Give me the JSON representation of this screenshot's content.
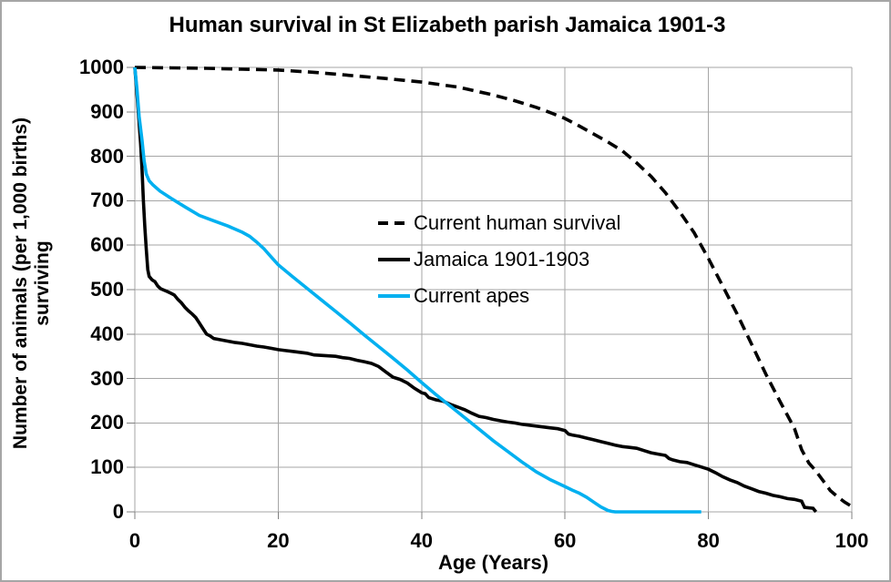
{
  "chart_data": {
    "type": "line",
    "title": "Human survival in St Elizabeth parish Jamaica 1901-3",
    "xlabel": "Age (Years)",
    "ylabel_line1": "Number of animals (per 1,000 births)",
    "ylabel_line2": "surviving",
    "xlim": [
      0,
      100
    ],
    "ylim": [
      0,
      1000
    ],
    "x_ticks": [
      0,
      20,
      40,
      60,
      80,
      100
    ],
    "y_ticks": [
      0,
      100,
      200,
      300,
      400,
      500,
      600,
      700,
      800,
      900,
      1000
    ],
    "grid": true,
    "legend_position": "center-of-plot",
    "colors": {
      "grid": "#a6a6a6",
      "tick": "#808080",
      "border": "#a6a6a6",
      "human_dashed": "#000000",
      "jamaica": "#000000",
      "apes": "#00b0f0"
    },
    "series": [
      {
        "name": "Current human survival",
        "style": "dashed",
        "color": "#000000",
        "points": [
          [
            0,
            1000
          ],
          [
            5,
            999
          ],
          [
            10,
            998
          ],
          [
            15,
            996
          ],
          [
            20,
            994
          ],
          [
            25,
            989
          ],
          [
            30,
            982
          ],
          [
            35,
            975
          ],
          [
            40,
            967
          ],
          [
            45,
            956
          ],
          [
            50,
            938
          ],
          [
            53,
            925
          ],
          [
            56,
            910
          ],
          [
            58,
            898
          ],
          [
            60,
            885
          ],
          [
            62,
            868
          ],
          [
            64,
            850
          ],
          [
            66,
            832
          ],
          [
            68,
            812
          ],
          [
            70,
            785
          ],
          [
            72,
            755
          ],
          [
            74,
            718
          ],
          [
            76,
            675
          ],
          [
            78,
            628
          ],
          [
            80,
            570
          ],
          [
            82,
            508
          ],
          [
            84,
            445
          ],
          [
            86,
            378
          ],
          [
            88,
            310
          ],
          [
            90,
            248
          ],
          [
            92,
            188
          ],
          [
            93,
            140
          ],
          [
            94,
            110
          ],
          [
            95,
            92
          ],
          [
            96,
            70
          ],
          [
            97,
            48
          ],
          [
            98,
            34
          ],
          [
            99,
            22
          ],
          [
            100,
            12
          ]
        ]
      },
      {
        "name": "Jamaica 1901-1903",
        "style": "solid",
        "color": "#000000",
        "points": [
          [
            0,
            1000
          ],
          [
            0.4,
            920
          ],
          [
            0.8,
            830
          ],
          [
            1,
            770
          ],
          [
            1.2,
            700
          ],
          [
            1.4,
            640
          ],
          [
            1.6,
            590
          ],
          [
            1.8,
            545
          ],
          [
            2,
            530
          ],
          [
            2.4,
            522
          ],
          [
            2.8,
            518
          ],
          [
            3.2,
            508
          ],
          [
            3.6,
            502
          ],
          [
            4.5,
            496
          ],
          [
            5,
            492
          ],
          [
            5.5,
            488
          ],
          [
            6,
            478
          ],
          [
            6.5,
            470
          ],
          [
            7,
            460
          ],
          [
            7.5,
            452
          ],
          [
            8,
            445
          ],
          [
            8.5,
            437
          ],
          [
            9,
            425
          ],
          [
            9.5,
            412
          ],
          [
            10,
            400
          ],
          [
            10.5,
            396
          ],
          [
            11,
            390
          ],
          [
            12,
            387
          ],
          [
            13,
            384
          ],
          [
            14,
            381
          ],
          [
            15,
            379
          ],
          [
            16,
            376
          ],
          [
            17,
            373
          ],
          [
            18,
            371
          ],
          [
            19,
            368
          ],
          [
            20,
            365
          ],
          [
            21,
            363
          ],
          [
            22,
            361
          ],
          [
            23,
            359
          ],
          [
            24,
            357
          ],
          [
            25,
            353
          ],
          [
            26,
            352
          ],
          [
            27,
            351
          ],
          [
            28,
            350
          ],
          [
            29,
            347
          ],
          [
            30,
            345
          ],
          [
            31,
            341
          ],
          [
            32,
            338
          ],
          [
            33,
            334
          ],
          [
            34,
            327
          ],
          [
            35,
            315
          ],
          [
            36,
            303
          ],
          [
            37,
            298
          ],
          [
            38,
            290
          ],
          [
            39,
            278
          ],
          [
            40,
            268
          ],
          [
            40.5,
            266
          ],
          [
            41,
            257
          ],
          [
            42,
            252
          ],
          [
            43,
            249
          ],
          [
            44,
            242
          ],
          [
            45,
            236
          ],
          [
            46,
            230
          ],
          [
            47,
            222
          ],
          [
            48,
            215
          ],
          [
            49,
            212
          ],
          [
            50,
            208
          ],
          [
            51,
            205
          ],
          [
            52,
            202
          ],
          [
            53,
            200
          ],
          [
            54,
            197
          ],
          [
            55,
            195
          ],
          [
            56,
            193
          ],
          [
            57,
            191
          ],
          [
            58,
            189
          ],
          [
            59,
            187
          ],
          [
            60,
            183
          ],
          [
            60.5,
            175
          ],
          [
            61,
            173
          ],
          [
            62,
            170
          ],
          [
            63,
            166
          ],
          [
            64,
            162
          ],
          [
            65,
            158
          ],
          [
            66,
            154
          ],
          [
            67,
            150
          ],
          [
            68,
            147
          ],
          [
            69,
            145
          ],
          [
            70,
            143
          ],
          [
            71,
            138
          ],
          [
            72,
            133
          ],
          [
            73,
            130
          ],
          [
            74,
            127
          ],
          [
            74.5,
            120
          ],
          [
            75,
            117
          ],
          [
            76,
            113
          ],
          [
            77,
            111
          ],
          [
            78,
            106
          ],
          [
            79,
            101
          ],
          [
            80,
            96
          ],
          [
            81,
            88
          ],
          [
            82,
            79
          ],
          [
            83,
            72
          ],
          [
            84,
            66
          ],
          [
            85,
            58
          ],
          [
            86,
            52
          ],
          [
            87,
            46
          ],
          [
            88,
            42
          ],
          [
            89,
            37
          ],
          [
            90,
            34
          ],
          [
            91,
            30
          ],
          [
            92,
            28
          ],
          [
            93,
            24
          ],
          [
            93.4,
            10
          ],
          [
            94.6,
            8
          ],
          [
            95,
            0
          ]
        ]
      },
      {
        "name": "Current apes",
        "style": "solid",
        "color": "#00b0f0",
        "points": [
          [
            0,
            1000
          ],
          [
            0.3,
            950
          ],
          [
            0.6,
            890
          ],
          [
            1,
            836
          ],
          [
            1.3,
            790
          ],
          [
            1.6,
            760
          ],
          [
            2,
            745
          ],
          [
            2.5,
            736
          ],
          [
            3.5,
            722
          ],
          [
            5,
            706
          ],
          [
            7,
            686
          ],
          [
            9,
            667
          ],
          [
            11,
            655
          ],
          [
            13,
            643
          ],
          [
            15,
            629
          ],
          [
            16,
            620
          ],
          [
            17,
            607
          ],
          [
            18,
            592
          ],
          [
            19,
            574
          ],
          [
            20,
            556
          ],
          [
            22,
            529
          ],
          [
            24,
            503
          ],
          [
            26,
            477
          ],
          [
            28,
            451
          ],
          [
            30,
            425
          ],
          [
            32,
            398
          ],
          [
            34,
            372
          ],
          [
            36,
            346
          ],
          [
            38,
            319
          ],
          [
            40,
            291
          ],
          [
            42,
            264
          ],
          [
            44,
            238
          ],
          [
            46,
            212
          ],
          [
            48,
            186
          ],
          [
            50,
            160
          ],
          [
            52,
            136
          ],
          [
            54,
            112
          ],
          [
            56,
            90
          ],
          [
            58,
            72
          ],
          [
            60,
            57
          ],
          [
            61,
            49
          ],
          [
            62,
            42
          ],
          [
            63,
            33
          ],
          [
            64,
            22
          ],
          [
            65,
            11
          ],
          [
            66,
            3
          ],
          [
            66.5,
            1
          ],
          [
            67,
            0
          ],
          [
            79,
            0
          ]
        ]
      }
    ]
  }
}
